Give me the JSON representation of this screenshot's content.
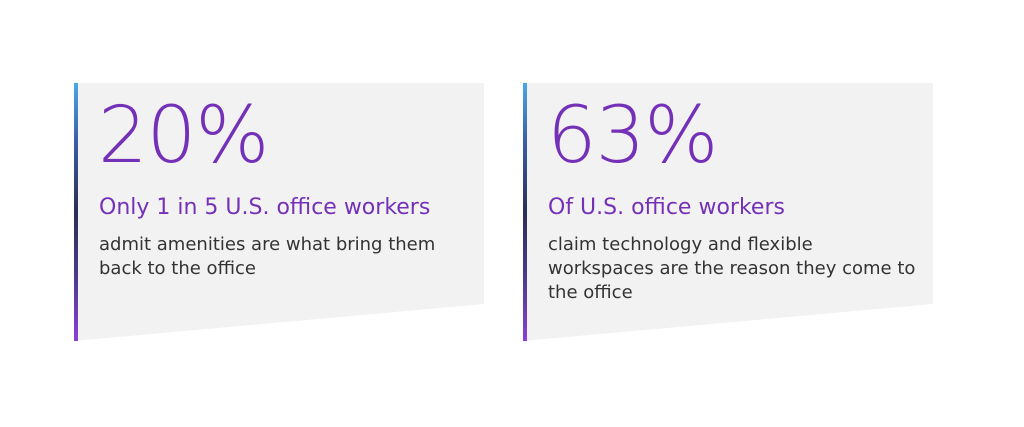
{
  "colors": {
    "accent": "#7431b8",
    "card_background": "#f2f2f2",
    "body_text": "#333333"
  },
  "cards": [
    {
      "stat": "20%",
      "headline": "Only 1 in 5 U.S. office workers",
      "description": "admit amenities are what bring them back to the office"
    },
    {
      "stat": "63%",
      "headline": "Of U.S. office workers",
      "description": "claim technology and flexible workspaces are the reason they come to the office"
    }
  ]
}
